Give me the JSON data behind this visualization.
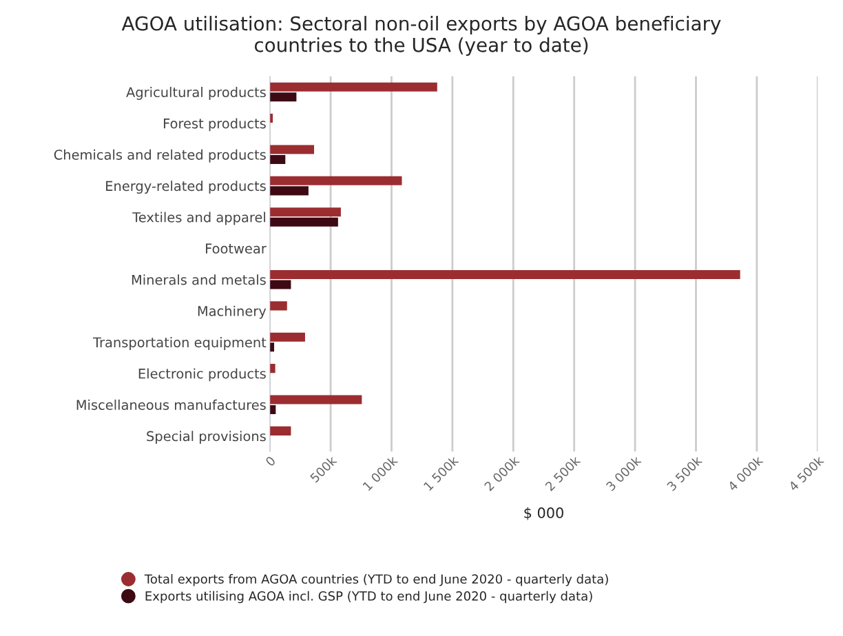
{
  "chart_data": {
    "type": "bar",
    "orientation": "horizontal",
    "title": "AGOA utilisation: Sectoral non-oil exports by AGOA beneficiary\ncountries to the USA (year to date)",
    "xlabel": "$ 000",
    "categories": [
      "Agricultural products",
      "Forest products",
      "Chemicals and related products",
      "Energy-related products",
      "Textiles and apparel",
      "Footwear",
      "Minerals and metals",
      "Machinery",
      "Transportation equipment",
      "Electronic products",
      "Miscellaneous manufactures",
      "Special provisions"
    ],
    "series": [
      {
        "name": "Total exports from AGOA countries (YTD to end June 2020 - quarterly data)",
        "color": "#9b2d30",
        "values": [
          1375000,
          25000,
          364000,
          1085000,
          584000,
          null,
          3863000,
          142000,
          290000,
          45000,
          756000,
          174000
        ]
      },
      {
        "name": "Exports utilising AGOA incl. GSP (YTD to end June 2020 - quarterly data)",
        "color": "#3d0a14",
        "values": [
          219000,
          null,
          128000,
          318000,
          561000,
          null,
          174000,
          null,
          36000,
          null,
          49000,
          0
        ]
      }
    ],
    "xlim": [
      0,
      4500000
    ],
    "xticks": [
      {
        "value": 0,
        "label": "0"
      },
      {
        "value": 500000,
        "label": "500k"
      },
      {
        "value": 1000000,
        "label": "1 000k"
      },
      {
        "value": 1500000,
        "label": "1 500k"
      },
      {
        "value": 2000000,
        "label": "2 000k"
      },
      {
        "value": 2500000,
        "label": "2 500k"
      },
      {
        "value": 3000000,
        "label": "3 000k"
      },
      {
        "value": 3500000,
        "label": "3 500k"
      },
      {
        "value": 4000000,
        "label": "4 000k"
      },
      {
        "value": 4500000,
        "label": "4 500k"
      }
    ],
    "grid": "x",
    "legend": "bottom"
  }
}
